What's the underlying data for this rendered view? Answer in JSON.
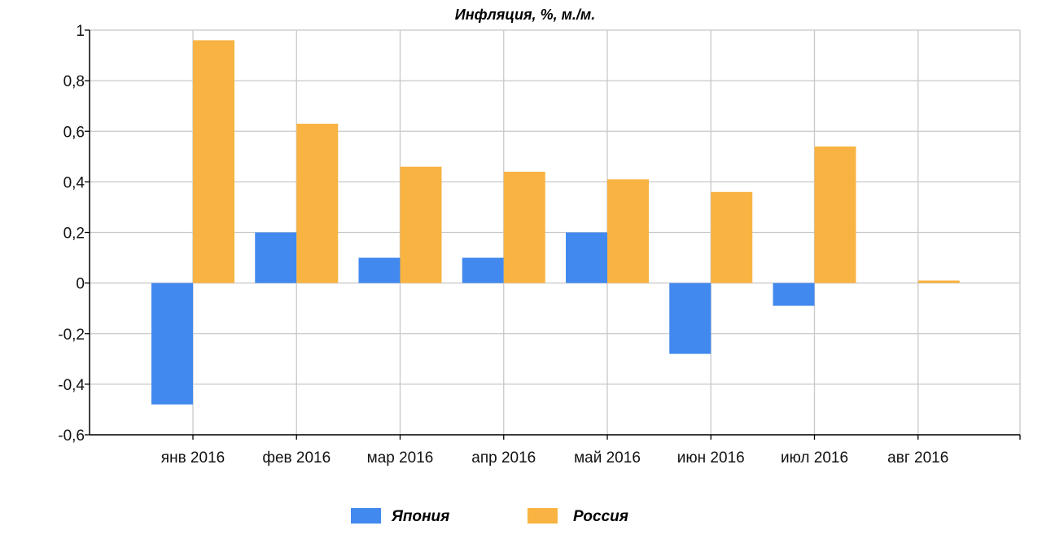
{
  "chart_data": {
    "type": "bar",
    "title": "Инфляция, %, м./м.",
    "xlabel": "",
    "ylabel": "",
    "categories": [
      "янв 2016",
      "фев 2016",
      "мар 2016",
      "апр 2016",
      "май 2016",
      "июн 2016",
      "июл 2016",
      "авг 2016"
    ],
    "series": [
      {
        "name": "Япония",
        "color": "#4189ef",
        "values": [
          -0.48,
          0.2,
          0.1,
          0.1,
          0.2,
          -0.28,
          -0.09,
          null
        ]
      },
      {
        "name": "Россия",
        "color": "#f9b342",
        "values": [
          0.96,
          0.63,
          0.46,
          0.44,
          0.41,
          0.36,
          0.54,
          0.01
        ]
      }
    ],
    "ylim": [
      -0.6,
      1
    ],
    "yticks": [
      1,
      0.8,
      0.6,
      0.4,
      0.2,
      0,
      -0.2,
      -0.4,
      -0.6
    ],
    "ytick_labels": [
      "1",
      "0,8",
      "0,6",
      "0,4",
      "0,2",
      "0",
      "-0,2",
      "-0,4",
      "-0,6"
    ],
    "grid": true,
    "legend_position": "bottom"
  }
}
